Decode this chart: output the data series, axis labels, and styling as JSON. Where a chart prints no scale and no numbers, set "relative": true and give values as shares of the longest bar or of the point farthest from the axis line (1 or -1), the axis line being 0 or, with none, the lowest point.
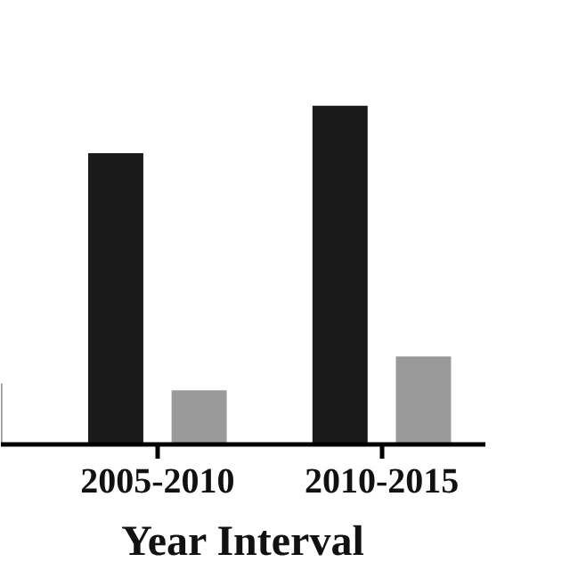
{
  "chart_data": {
    "type": "bar",
    "xlabel": "Year Interval",
    "categories": [
      null,
      "2005-2010",
      "2010-2015"
    ],
    "relative": true,
    "grid": false,
    "series": [
      {
        "color": "#1a1a1a",
        "values": [
          null,
          0.86,
          1.0
        ]
      },
      {
        "color": "#9a9a9a",
        "values": [
          0.18,
          0.16,
          0.26
        ]
      }
    ]
  }
}
